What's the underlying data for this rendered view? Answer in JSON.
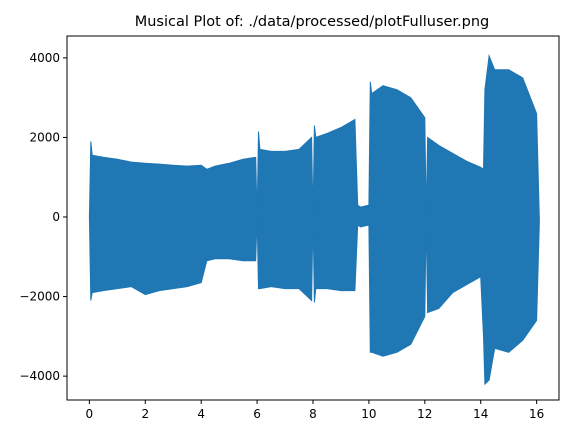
{
  "chart_data": {
    "type": "area",
    "title": "Musical Plot of: ./data/processed/plotFulluser.png",
    "xlabel": "",
    "ylabel": "",
    "xlim": [
      -0.8,
      16.8
    ],
    "ylim": [
      -4600,
      4550
    ],
    "x_ticks": [
      0,
      2,
      4,
      6,
      8,
      10,
      12,
      14,
      16
    ],
    "x_tick_labels": [
      "0",
      "2",
      "4",
      "6",
      "8",
      "10",
      "12",
      "14",
      "16"
    ],
    "y_ticks": [
      -4000,
      -2000,
      0,
      2000,
      4000
    ],
    "y_tick_labels": [
      "−4000",
      "−2000",
      "0",
      "2000",
      "4000"
    ],
    "grid": false,
    "legend": "none",
    "series_color": "#1f77b4",
    "series": [
      {
        "x": [
          0.0,
          0.05,
          0.1,
          0.5,
          1.0,
          1.5,
          2.0,
          2.5,
          3.0,
          3.5,
          4.0,
          4.2,
          4.5,
          5.0,
          5.5,
          5.95,
          6.0,
          6.05,
          6.1,
          6.5,
          7.0,
          7.5,
          7.95,
          8.0,
          8.05,
          8.1,
          8.5,
          9.0,
          9.5,
          9.6,
          9.7,
          10.0,
          10.05,
          10.1,
          10.5,
          11.0,
          11.5,
          12.0,
          12.05,
          12.1,
          12.5,
          13.0,
          13.5,
          14.0,
          14.1,
          14.15,
          14.3,
          14.5,
          15.0,
          15.5,
          16.0,
          16.1
        ],
        "upper": [
          0,
          1900,
          1550,
          1500,
          1450,
          1380,
          1350,
          1330,
          1300,
          1280,
          1300,
          1200,
          1280,
          1350,
          1450,
          1500,
          0,
          2150,
          1700,
          1650,
          1650,
          1700,
          2000,
          0,
          2300,
          2000,
          2100,
          2250,
          2450,
          300,
          250,
          300,
          3400,
          3100,
          3300,
          3200,
          3000,
          2500,
          0,
          2000,
          1800,
          1600,
          1400,
          1250,
          1200,
          3200,
          4050,
          3700,
          3700,
          3500,
          2600,
          -100
        ],
        "lower": [
          0,
          -2100,
          -1900,
          -1850,
          -1800,
          -1750,
          -1950,
          -1850,
          -1800,
          -1750,
          -1650,
          -1100,
          -1050,
          -1050,
          -1100,
          -1100,
          0,
          -1800,
          -1800,
          -1750,
          -1800,
          -1800,
          -2100,
          0,
          -2150,
          -1800,
          -1800,
          -1850,
          -1850,
          -200,
          -250,
          -200,
          -3400,
          -3400,
          -3500,
          -3400,
          -3200,
          -2500,
          0,
          -2400,
          -2300,
          -1900,
          -1700,
          -1500,
          -3000,
          -4200,
          -4100,
          -3300,
          -3400,
          -3100,
          -2600,
          -100
        ]
      }
    ]
  }
}
